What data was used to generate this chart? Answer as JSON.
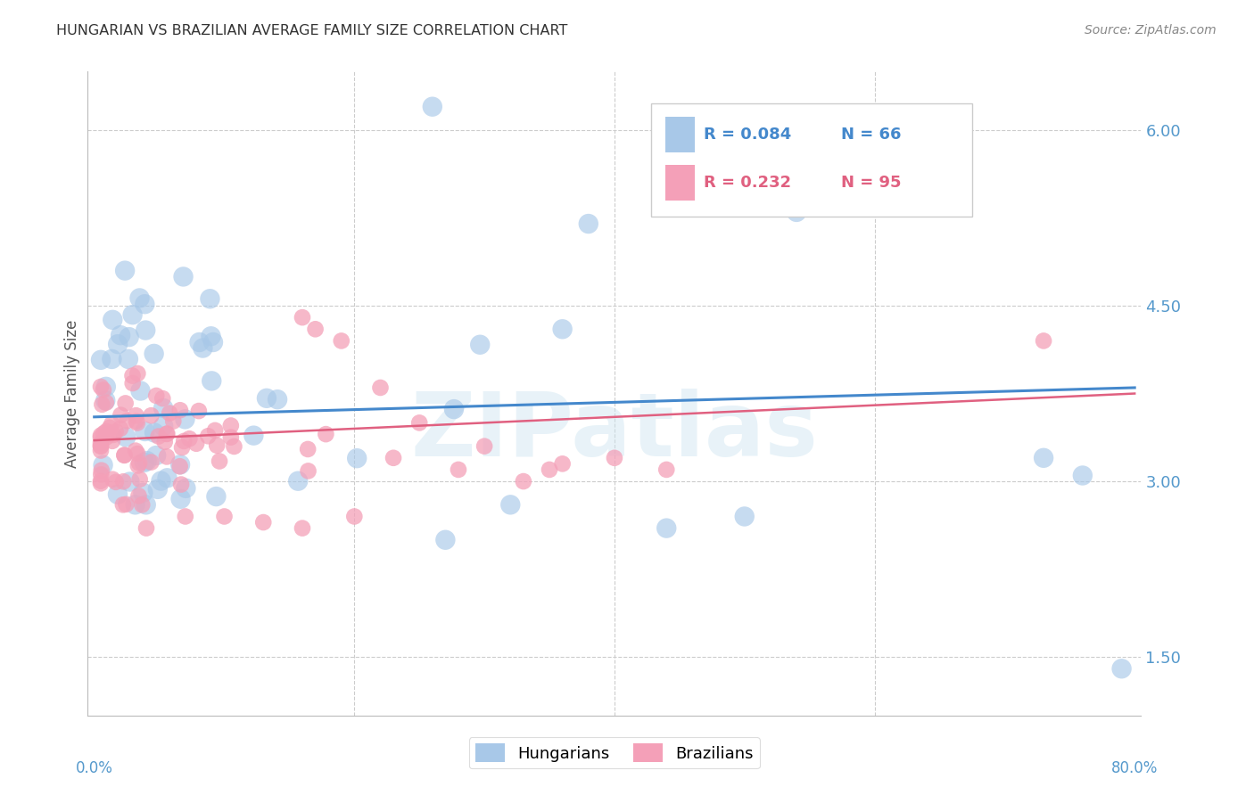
{
  "title": "HUNGARIAN VS BRAZILIAN AVERAGE FAMILY SIZE CORRELATION CHART",
  "source": "Source: ZipAtlas.com",
  "ylabel": "Average Family Size",
  "watermark": "ZIPatlas",
  "yticks": [
    1.5,
    3.0,
    4.5,
    6.0
  ],
  "ylim": [
    1.0,
    6.5
  ],
  "xlim": [
    -0.005,
    0.805
  ],
  "legend_blue_r": "0.084",
  "legend_blue_n": "66",
  "legend_pink_r": "0.232",
  "legend_pink_n": "95",
  "blue_color": "#a8c8e8",
  "pink_color": "#f4a0b8",
  "blue_line_color": "#4488cc",
  "pink_line_color": "#e06080",
  "axis_color": "#5599cc",
  "background_color": "#ffffff",
  "grid_color": "#cccccc"
}
